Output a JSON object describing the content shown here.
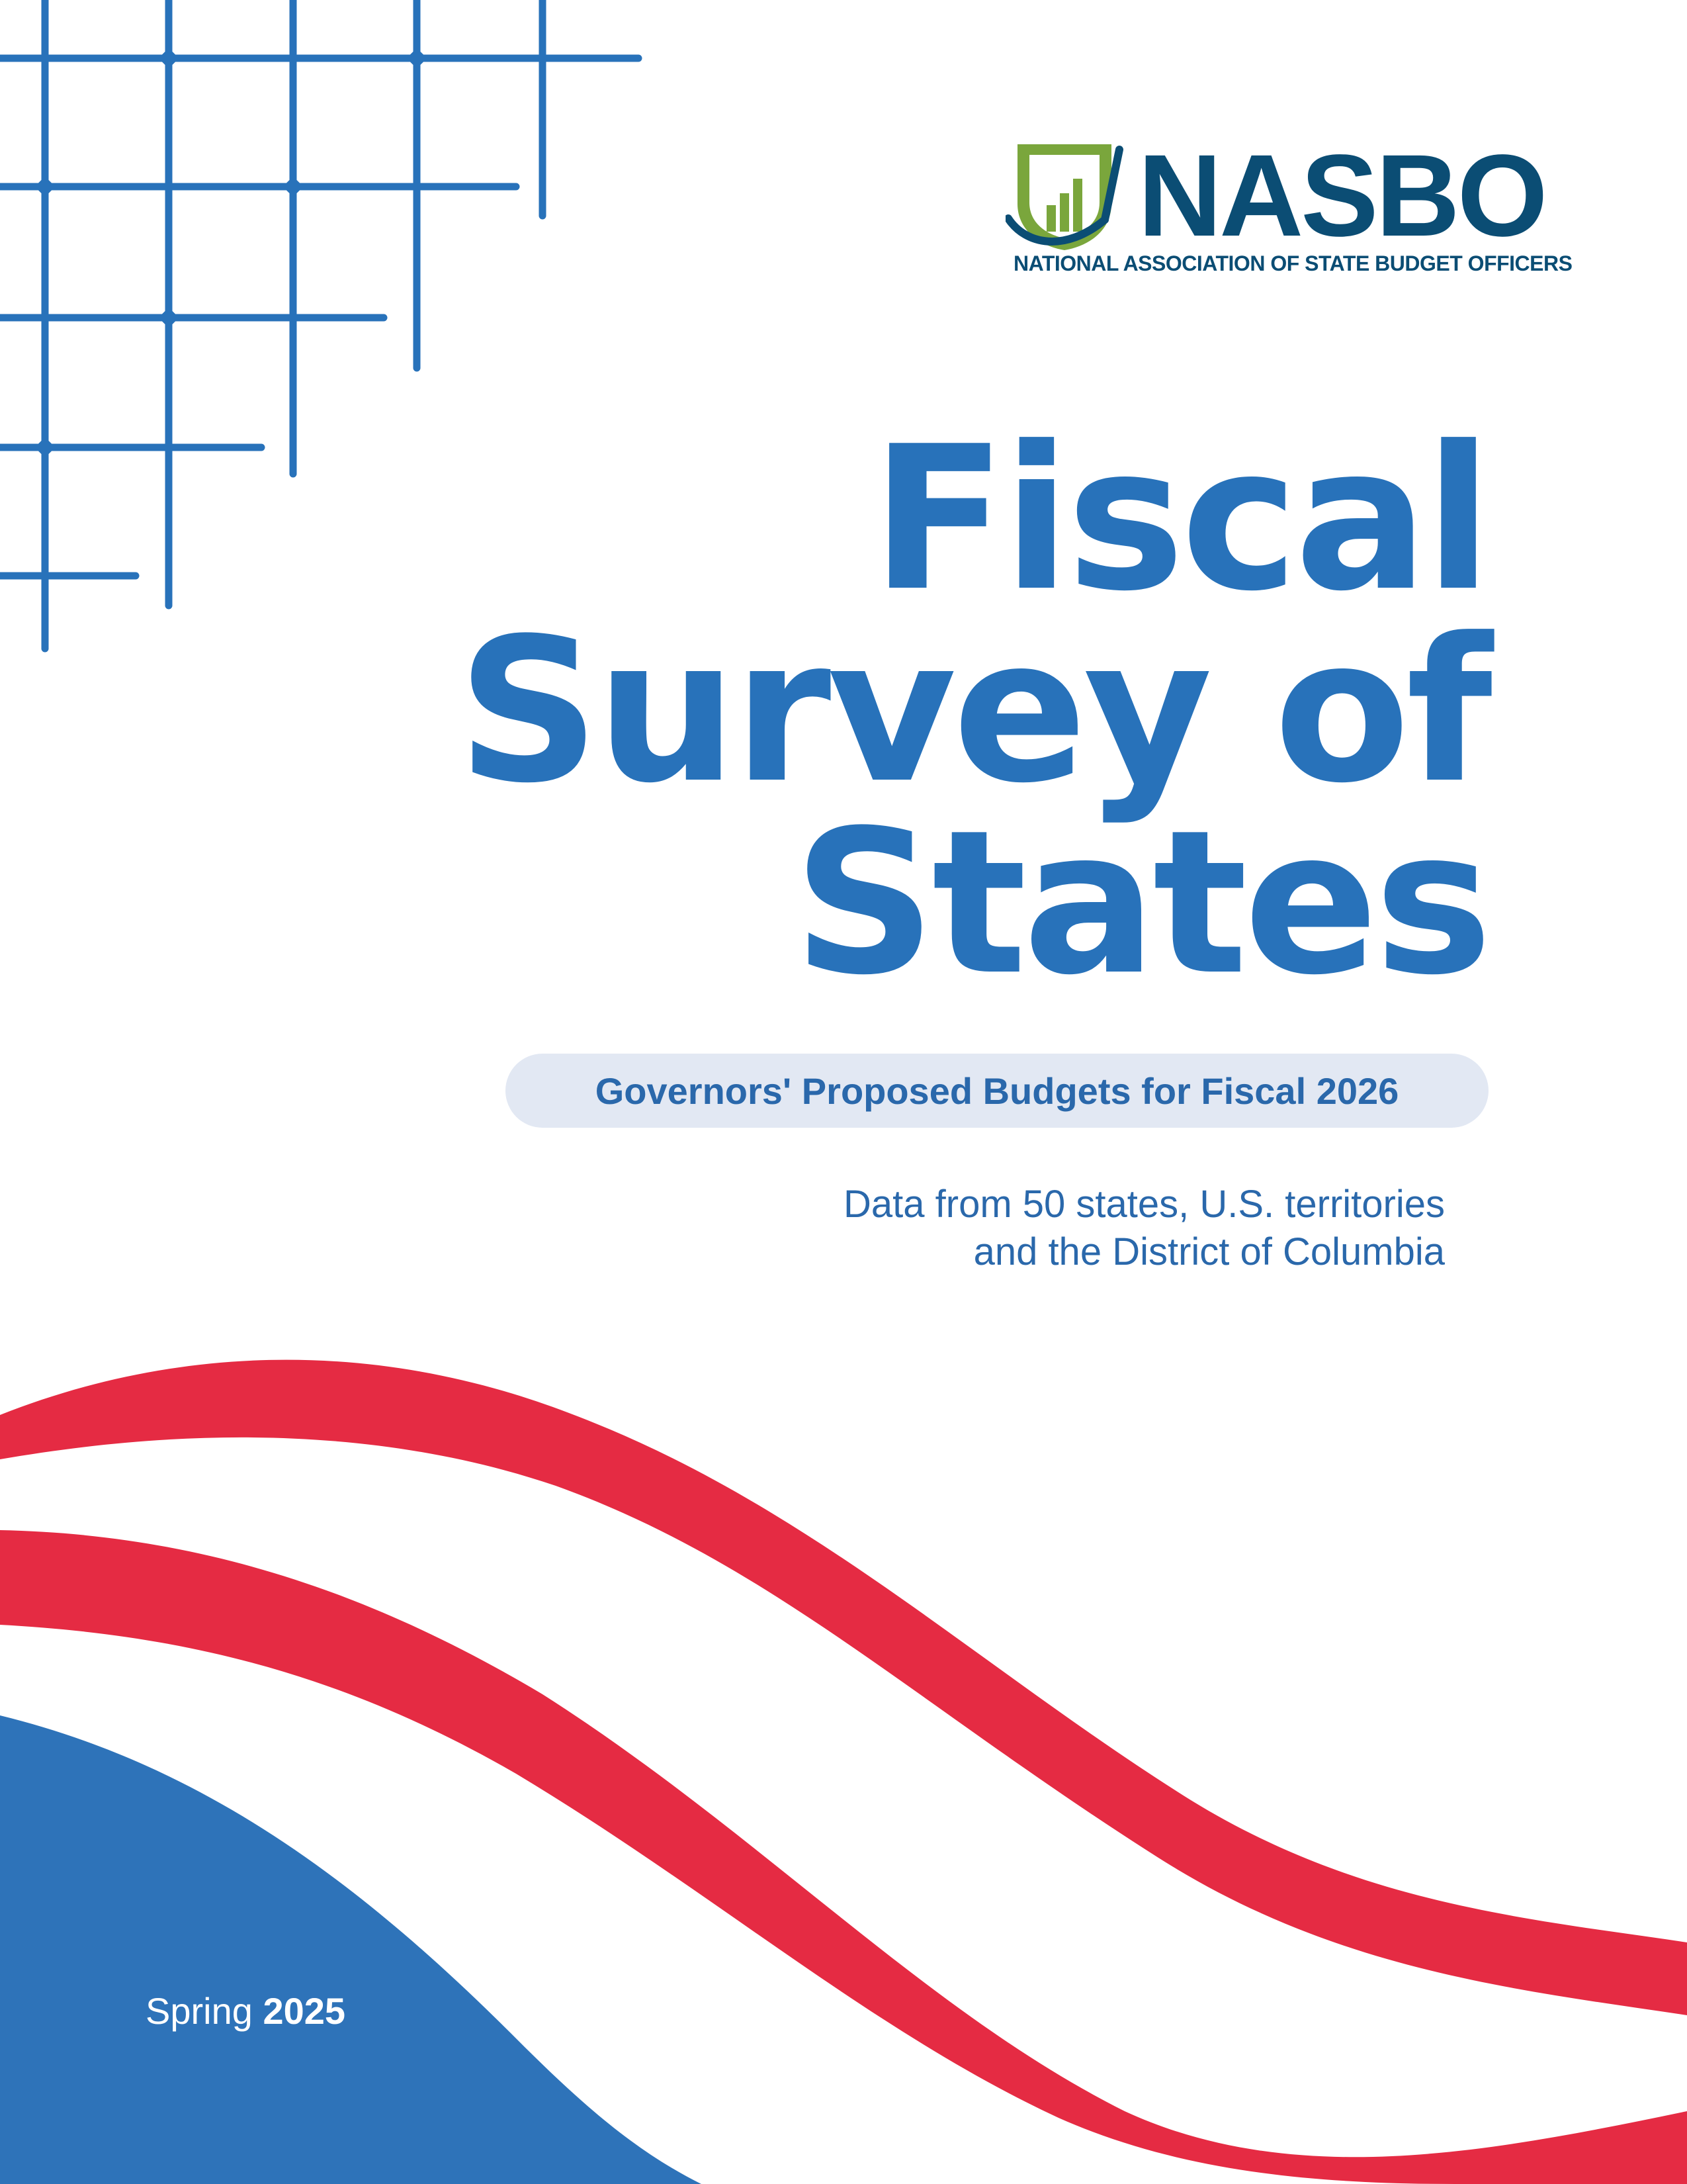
{
  "colors": {
    "brand_blue": "#2872ba",
    "navy": "#0b4d74",
    "flag_red": "#e52b43",
    "logo_green": "#7aa63c",
    "pill_bg": "#e2e8f3"
  },
  "logo": {
    "mark_icon": "shield-bar-chart-icon",
    "name": "NASBO",
    "subtitle": "NATIONAL ASSOCIATION OF STATE BUDGET OFFICERS"
  },
  "title": {
    "line1": "Fiscal",
    "line2": "Survey of",
    "line3": "States"
  },
  "subtitle_pill": "Governors' Proposed Budgets for Fiscal 2026",
  "coverage": {
    "line1": "Data from 50 states, U.S. territories",
    "line2": "and the District of Columbia"
  },
  "season": {
    "word": "Spring",
    "year": "2025"
  }
}
